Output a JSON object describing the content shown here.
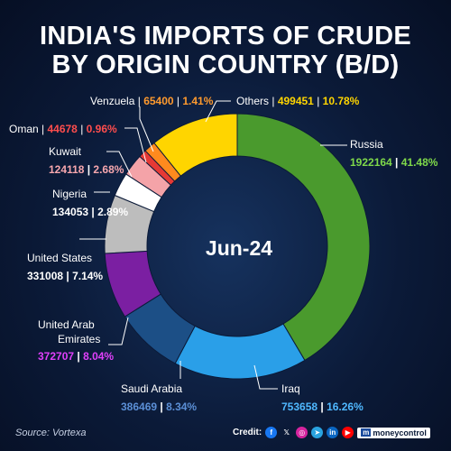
{
  "title_line1": "INDIA'S IMPORTS OF CRUDE",
  "title_line2": "BY ORIGIN COUNTRY (B/D)",
  "center_label": "Jun-24",
  "source": "Source: Vortexa",
  "credit": {
    "label": "Credit:",
    "icons": [
      "facebook-icon",
      "x-icon",
      "instagram-icon",
      "telegram-icon",
      "linkedin-icon",
      "youtube-icon"
    ],
    "brand": "moneycontrol"
  },
  "chart_data": {
    "type": "pie",
    "title": "INDIA'S IMPORTS OF CRUDE BY ORIGIN COUNTRY (B/D)",
    "period": "Jun-24",
    "unit": "B/D",
    "slices": [
      {
        "name": "Russia",
        "value_text": "1922164",
        "pct_text": "41.48%",
        "value": 1922164,
        "pct": 41.48,
        "color": "#4a9a2d",
        "label_color": "#7fd94a"
      },
      {
        "name": "Iraq",
        "value_text": "753658",
        "pct_text": "16.26%",
        "value": 753658,
        "pct": 16.26,
        "color": "#2a9fe8",
        "label_color": "#4fb8ff"
      },
      {
        "name": "Saudi Arabia",
        "value_text": "386469",
        "pct_text": "8.34%",
        "value": 386469,
        "pct": 8.34,
        "color": "#1c4f86",
        "label_color": "#5b8fd6"
      },
      {
        "name": "United Arab Emirates",
        "value_text": "372707",
        "pct_text": "8.04%",
        "value": 372707,
        "pct": 8.04,
        "color": "#7b1fa2",
        "label_color": "#e040fb"
      },
      {
        "name": "United States",
        "value_text": "331008",
        "pct_text": "7.14%",
        "value": 331008,
        "pct": 7.14,
        "color": "#bdbdbd",
        "label_color": "#ffffff"
      },
      {
        "name": "Nigeria",
        "value_text": "134053",
        "pct_text": "2.89%",
        "value": 134053,
        "pct": 2.89,
        "color": "#ffffff",
        "label_color": "#ffffff"
      },
      {
        "name": "Kuwait",
        "value_text": "124118",
        "pct_text": "2.68%",
        "value": 124118,
        "pct": 2.68,
        "color": "#f4a3a8",
        "label_color": "#f7a7ae"
      },
      {
        "name": "Oman",
        "value_text": "44678",
        "pct_text": "0.96%",
        "value": 44678,
        "pct": 0.96,
        "color": "#e53935",
        "label_color": "#ff4d4d"
      },
      {
        "name": "Venzuela",
        "value_text": "65400",
        "pct_text": "1.41%",
        "value": 65400,
        "pct": 1.41,
        "color": "#ff8a1e",
        "label_color": "#ff9a2e"
      },
      {
        "name": "Others",
        "value_text": "499451",
        "pct_text": "10.78%",
        "value": 499451,
        "pct": 10.78,
        "color": "#ffd500",
        "label_color": "#ffd500"
      }
    ]
  }
}
